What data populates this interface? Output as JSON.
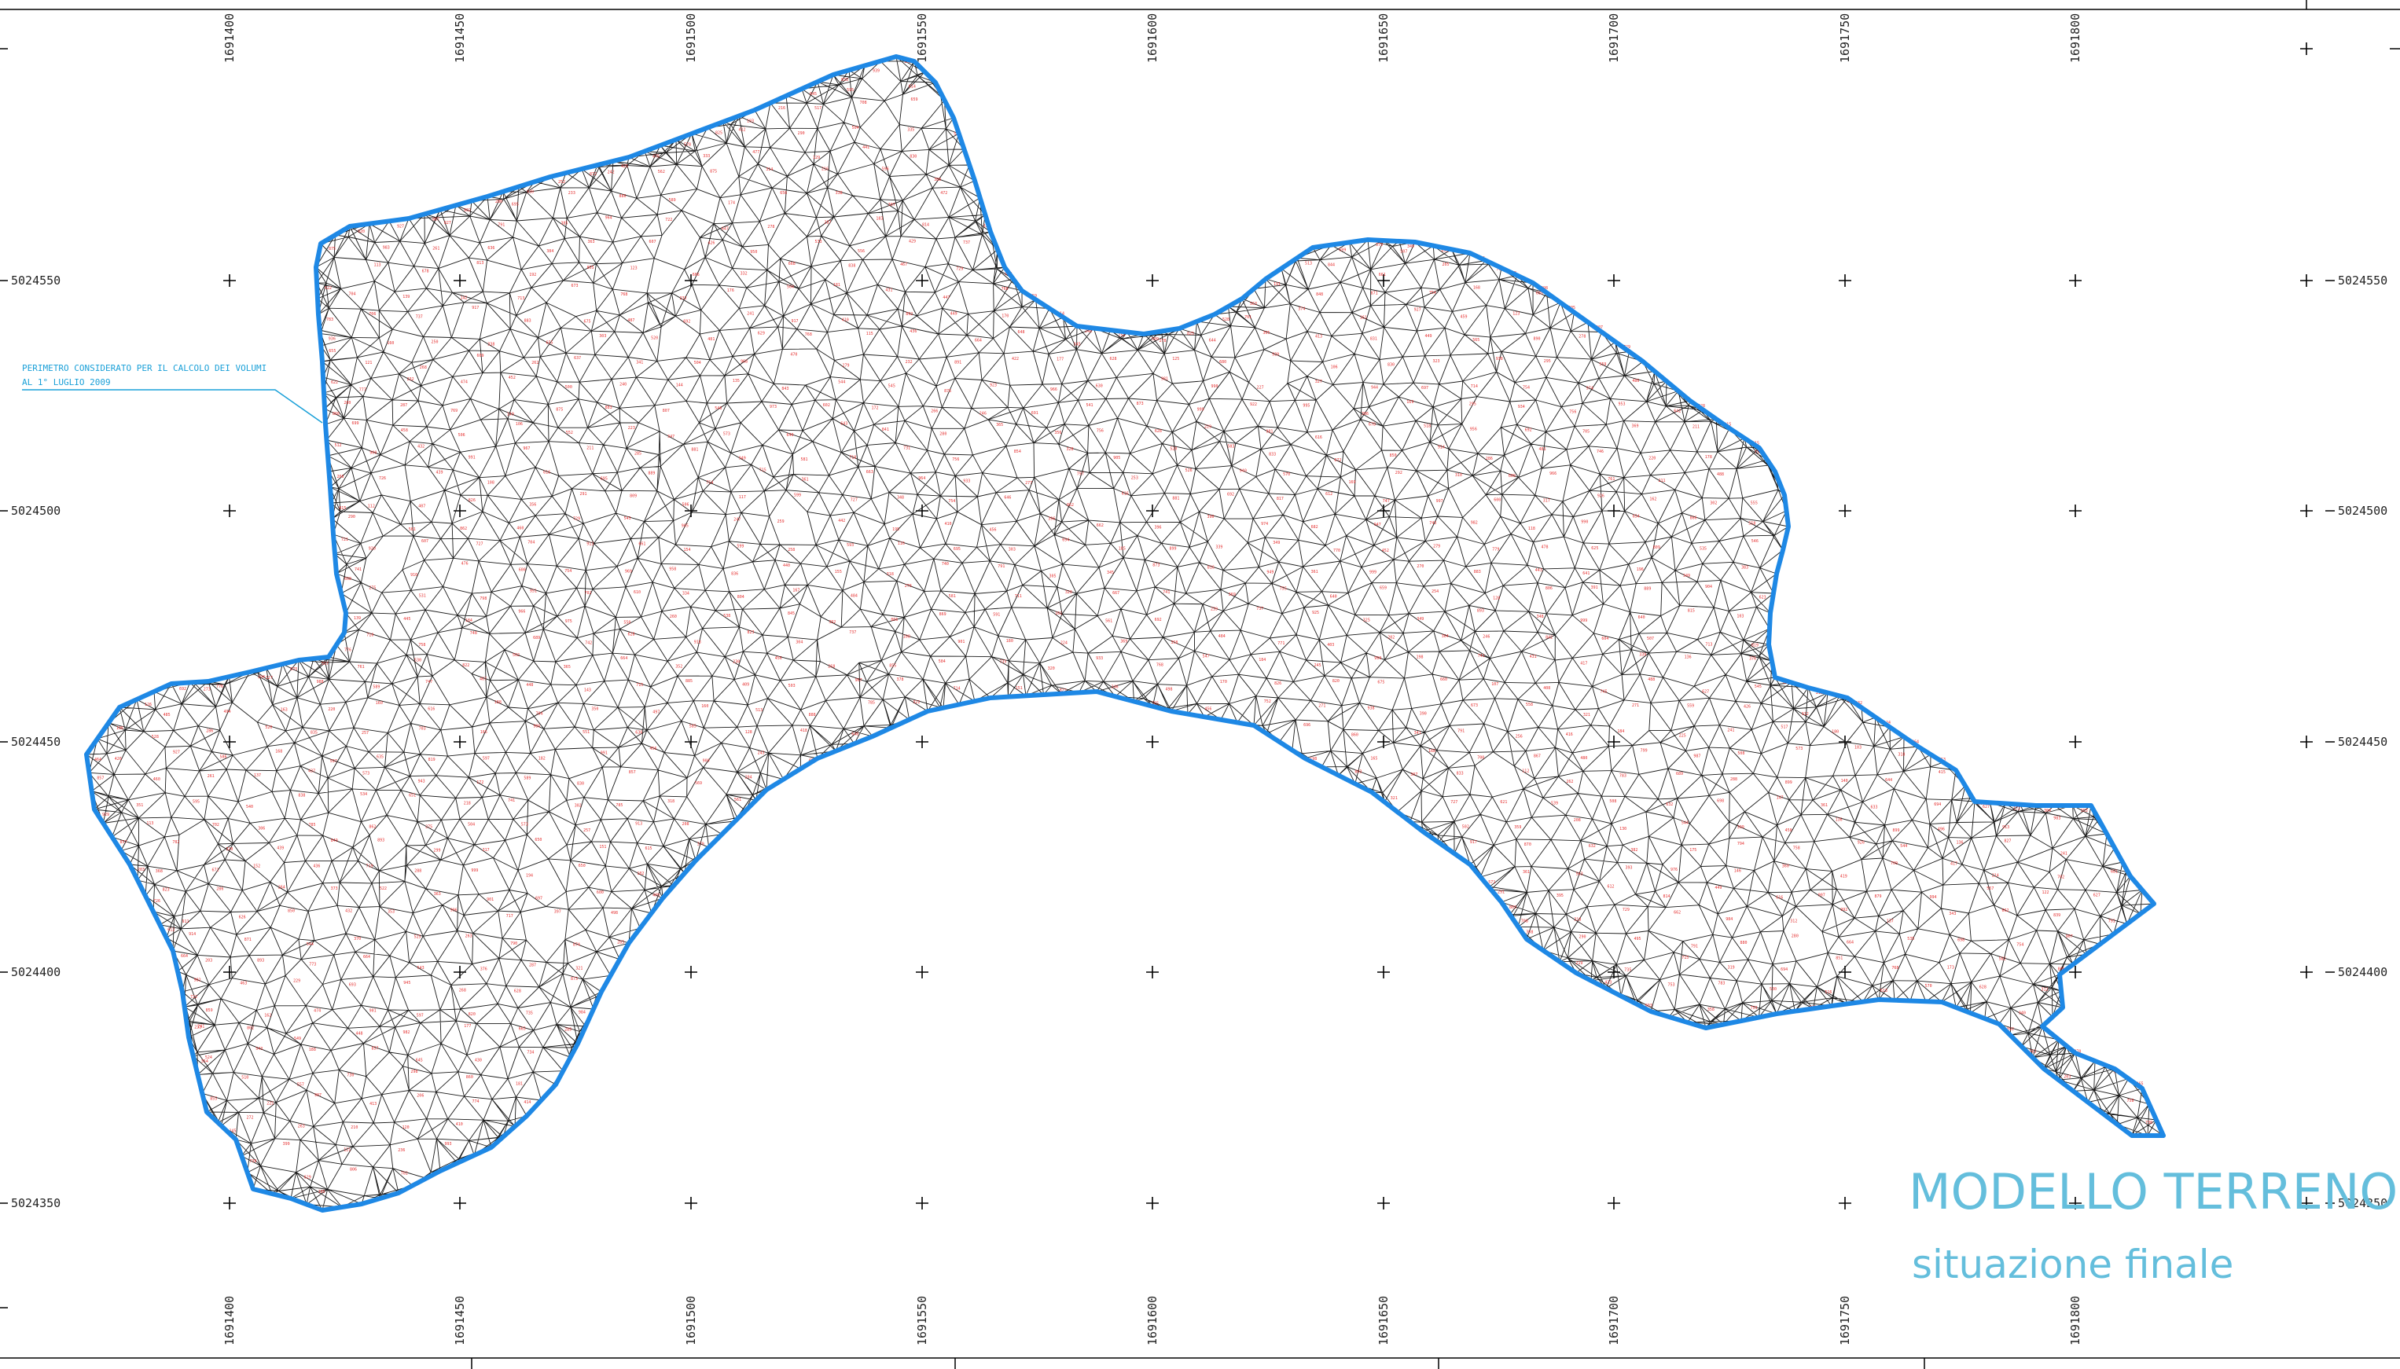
{
  "title": {
    "main": "MODELLO TERRENO",
    "sub": "situazione finale"
  },
  "annotation": {
    "line1": "PERIMETRO CONSIDERATO PER IL CALCOLO DEI VOLUMI",
    "line2": "AL 1° LUGLIO 2009"
  },
  "grid": {
    "x_labels": [
      "1691400",
      "1691450",
      "1691500",
      "1691550",
      "1691600",
      "1691650",
      "1691700",
      "1691750",
      "1691800"
    ],
    "y_labels": [
      "5024550",
      "5024500",
      "5024450",
      "5024400",
      "5024350"
    ]
  },
  "colors": {
    "perimeter": "#1e88e5",
    "mesh": "#1a1a1a",
    "elevation_labels": "#e53030",
    "title": "#64bedc"
  }
}
